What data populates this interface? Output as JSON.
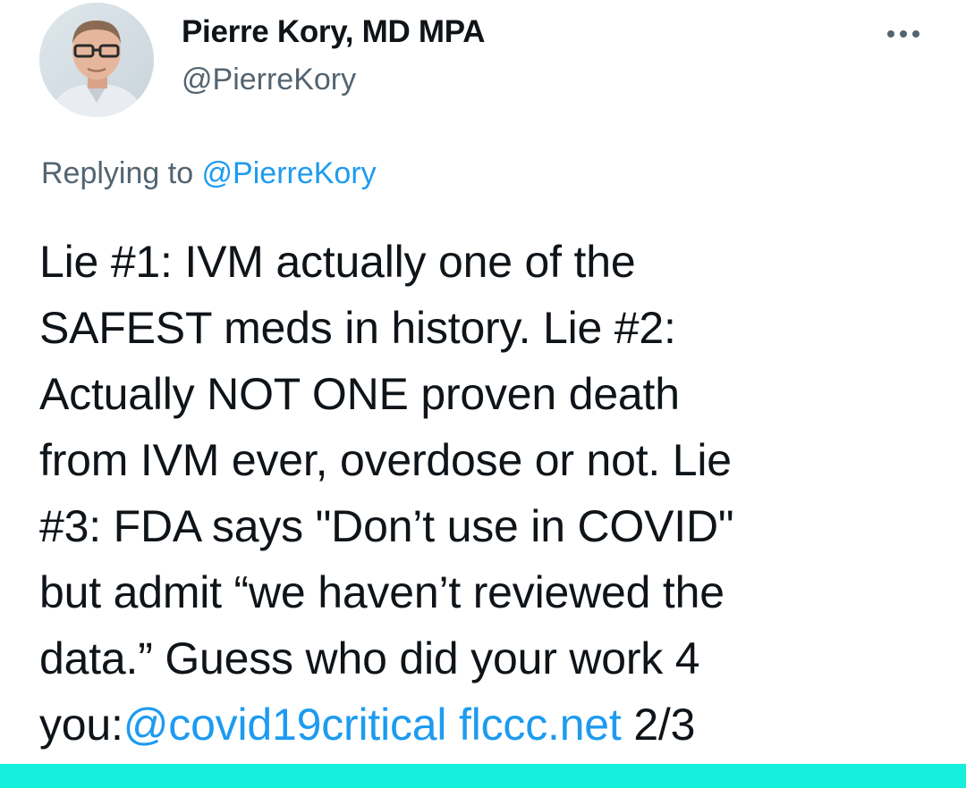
{
  "author": {
    "display_name": "Pierre Kory, MD MPA",
    "handle": "@PierreKory"
  },
  "more_icon": "more-horizontal-icon",
  "reply_context": {
    "prefix": "Replying to ",
    "mention": "@PierreKory"
  },
  "tweet": {
    "lines": [
      "Lie #1: IVM actually one of the",
      "SAFEST meds in history. Lie #2:",
      "Actually NOT ONE proven death",
      "from IVM ever, overdose or not. Lie",
      "#3: FDA says \"Don’t use in COVID\"",
      "but admit “we haven’t reviewed the",
      "data.” Guess who did your work 4"
    ],
    "last_line": {
      "prefix": "you:",
      "mention": "@covid19critical",
      "link": "flccc.net",
      "suffix": "2/3"
    }
  },
  "colors": {
    "link": "#1d9bf0",
    "secondary_text": "#536471",
    "text": "#0f1419",
    "bottom_bar": "#14f0dc"
  }
}
